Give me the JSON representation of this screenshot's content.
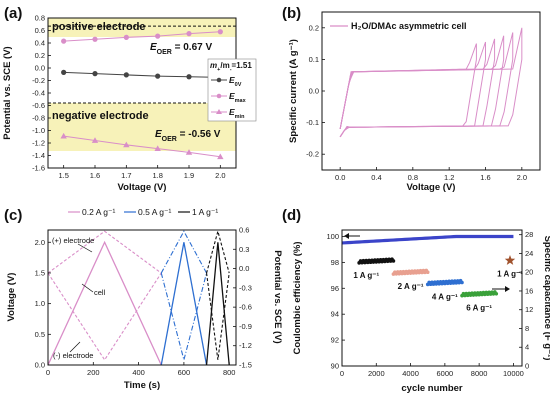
{
  "panel_letters": [
    "(a)",
    "(b)",
    "(c)",
    "(d)"
  ],
  "chart_data": [
    {
      "panel": "(a)",
      "type": "line",
      "xlabel": "Voltage (V)",
      "ylabel": "Potential vs. SCE (V)",
      "xlim": [
        1.45,
        2.05
      ],
      "ylim": [
        -1.6,
        0.8
      ],
      "xticks": [
        1.5,
        1.6,
        1.7,
        1.8,
        1.9,
        2.0
      ],
      "yticks": [
        -1.6,
        -1.4,
        -1.2,
        -1.0,
        -0.8,
        -0.6,
        -0.4,
        -0.2,
        0.0,
        0.2,
        0.4,
        0.6,
        0.8
      ],
      "x": [
        1.5,
        1.6,
        1.7,
        1.8,
        1.9,
        2.0
      ],
      "series": [
        {
          "name": "E0V",
          "color": "#444444",
          "marker": "circle",
          "values": [
            -0.07,
            -0.09,
            -0.11,
            -0.13,
            -0.14,
            -0.15
          ]
        },
        {
          "name": "Emax",
          "color": "#d98ec8",
          "marker": "circle",
          "values": [
            0.43,
            0.46,
            0.49,
            0.51,
            0.55,
            0.58
          ]
        },
        {
          "name": "Emin",
          "color": "#d98ec8",
          "marker": "triangle",
          "values": [
            -1.09,
            -1.16,
            -1.23,
            -1.29,
            -1.35,
            -1.42
          ]
        }
      ],
      "hlines": [
        0.67,
        -0.56
      ],
      "labels": {
        "positive": "positive electrode",
        "negative": "negative electrode",
        "eoer_pos_main": "E",
        "eoer_pos_sub": "OER",
        "eoer_pos_val": " = 0.67 V",
        "eoer_neg_main": "E",
        "eoer_neg_sub": "OER",
        "eoer_neg_val": " = -0.56 V",
        "mass_ratio_main": "m",
        "mass_ratio_sub1": "+",
        "mass_ratio_mid": "/m",
        "mass_ratio_sub2": "-",
        "mass_ratio_val": "=1.51",
        "legend_e0v_sub": "0V",
        "legend_emax_sub": "max",
        "legend_emin_sub": "min"
      },
      "colors": {
        "positive_bg": "#f7f2b9",
        "negative_bg": "#f7f2b9",
        "pink": "#d98ec8",
        "gray": "#444444"
      }
    },
    {
      "panel": "(b)",
      "type": "line",
      "xlabel": "Voltage (V)",
      "ylabel": "Specific current (A g⁻¹)",
      "xlim": [
        -0.2,
        2.2
      ],
      "ylim": [
        -0.25,
        0.25
      ],
      "xticks": [
        0.0,
        0.4,
        0.8,
        1.2,
        1.6,
        2.0
      ],
      "yticks": [
        -0.2,
        -0.1,
        0.0,
        0.1,
        0.2
      ],
      "cv_upper_limits": [
        1.5,
        1.6,
        1.7,
        1.8,
        1.9,
        2.0
      ],
      "cv_peak_currents": [
        0.15,
        0.155,
        0.165,
        0.175,
        0.185,
        0.2
      ],
      "legend": "H₂O/DMAc asymmetric cell",
      "color": "#d98ec8"
    },
    {
      "panel": "(c)",
      "type": "line",
      "xlabel": "Time (s)",
      "ylabel": "Voltage (V)",
      "ylabel_right": "Potential vs. SCE (V)",
      "xlim": [
        0,
        830
      ],
      "ylim": [
        0,
        2.2
      ],
      "ylim_right": [
        -1.5,
        0.6
      ],
      "xticks": [
        0,
        200,
        400,
        600,
        800
      ],
      "yticks": [
        0.0,
        0.5,
        1.0,
        1.5,
        2.0
      ],
      "yticks_right": [
        -1.5,
        -1.2,
        -0.9,
        -0.6,
        -0.3,
        0.0,
        0.3,
        0.6
      ],
      "legend": [
        "0.2 A g⁻¹",
        "0.5 A g⁻¹",
        "1 A g⁻¹"
      ],
      "annotations": [
        "(+) electrode",
        "cell",
        "(-) electrode"
      ],
      "series": [
        {
          "name": "0.2 A g⁻¹",
          "color": "#d98ec8",
          "cell": {
            "x": [
              0,
              250,
              500
            ],
            "y": [
              0,
              2.0,
              0
            ]
          },
          "pos": {
            "x": [
              0,
              250,
              500
            ],
            "y": [
              -0.07,
              0.58,
              -0.07
            ]
          },
          "neg": {
            "x": [
              0,
              250,
              500
            ],
            "y": [
              -0.07,
              -1.42,
              -0.07
            ]
          }
        },
        {
          "name": "0.5 A g⁻¹",
          "color": "#2e6fd1",
          "cell": {
            "x": [
              500,
              600,
              700
            ],
            "y": [
              0,
              2.0,
              0
            ]
          },
          "pos": {
            "x": [
              500,
              600,
              700
            ],
            "y": [
              -0.07,
              0.58,
              -0.07
            ]
          },
          "neg": {
            "x": [
              500,
              600,
              700
            ],
            "y": [
              -0.07,
              -1.42,
              -0.07
            ]
          }
        },
        {
          "name": "1 A g⁻¹",
          "color": "#111111",
          "cell": {
            "x": [
              700,
              750,
              800
            ],
            "y": [
              0,
              2.0,
              0
            ]
          },
          "pos": {
            "x": [
              700,
              750,
              800
            ],
            "y": [
              -0.07,
              0.58,
              -0.07
            ]
          },
          "neg": {
            "x": [
              700,
              750,
              800
            ],
            "y": [
              -0.07,
              -1.42,
              -0.07
            ]
          }
        }
      ]
    },
    {
      "panel": "(d)",
      "type": "scatter",
      "xlabel": "cycle number",
      "ylabel": "Coulombic efficiency (%)",
      "ylabel_right": "Specific capacitance (F g⁻¹)",
      "xlim": [
        0,
        10500
      ],
      "ylim": [
        90,
        100.5
      ],
      "ylim_right": [
        0,
        29
      ],
      "xticks": [
        0,
        2000,
        4000,
        6000,
        8000,
        10000
      ],
      "yticks": [
        90,
        92,
        94,
        96,
        98,
        100
      ],
      "yticks_right": [
        0,
        4,
        8,
        12,
        16,
        20,
        24,
        28
      ],
      "efficiency": {
        "color": "#3b44c9",
        "x_start": 0,
        "x_end": 10000,
        "y_start": 99.5,
        "y_end": 100.0
      },
      "capacitance_groups": [
        {
          "label": "1 A g⁻¹",
          "color": "#111111",
          "x": [
            1000,
            3000
          ],
          "y": [
            22.2,
            22.6
          ]
        },
        {
          "label": "2 A g⁻¹",
          "color": "#e8a090",
          "x": [
            3000,
            5000
          ],
          "y": [
            19.8,
            20.2
          ]
        },
        {
          "label": "4 A g⁻¹",
          "color": "#2e6fd1",
          "x": [
            5000,
            7000
          ],
          "y": [
            17.6,
            18.0
          ]
        },
        {
          "label": "6 A g⁻¹",
          "color": "#3aa13a",
          "x": [
            7000,
            9000
          ],
          "y": [
            15.2,
            15.6
          ]
        }
      ],
      "star": {
        "label": "1 A g⁻¹",
        "x": 9800,
        "y": 22.5,
        "color": "#a0522d"
      }
    }
  ]
}
